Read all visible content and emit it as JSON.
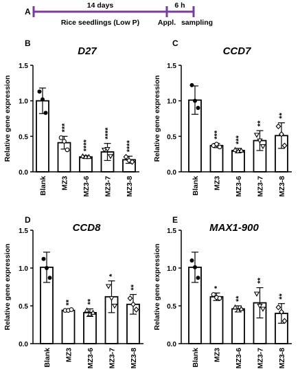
{
  "figure": {
    "panel_a": {
      "letter": "A",
      "duration_label": "14 days",
      "seedling_label": "Rice seedlings (Low P)",
      "appl_duration_label": "6 h",
      "appl_label": "Appl.",
      "sampling_label": "sampling",
      "timeline_color": "#7a3b9c"
    }
  },
  "chart_data": [
    {
      "panel": "B",
      "type": "bar",
      "title": "D27",
      "title_style": "italic",
      "ylabel": "Relative gene expression",
      "ylim": [
        0,
        1.5
      ],
      "yticks": [
        "0.0",
        "0.5",
        "1.0",
        "1.5"
      ],
      "categories": [
        "Blank",
        "MZ3",
        "MZ3-6",
        "MZ3-7",
        "MZ3-8"
      ],
      "values": [
        1.0,
        0.41,
        0.21,
        0.28,
        0.17
      ],
      "errors": [
        0.18,
        0.09,
        0.02,
        0.12,
        0.05
      ],
      "significance": [
        "",
        "***",
        "****",
        "****",
        "****"
      ],
      "points": [
        [
          1.13,
          1.02,
          0.83
        ],
        [
          0.48,
          0.43,
          0.31
        ],
        [
          0.22,
          0.21,
          0.21
        ],
        [
          0.31,
          0.32,
          0.22
        ],
        [
          0.21,
          0.16,
          0.14
        ]
      ]
    },
    {
      "panel": "C",
      "type": "bar",
      "title": "CCD7",
      "title_style": "italic",
      "ylabel": "Relative gene expression",
      "ylim": [
        0,
        1.5
      ],
      "yticks": [
        "0.0",
        "0.5",
        "1.0",
        "1.5"
      ],
      "categories": [
        "Blank",
        "MZ3",
        "MZ3-6",
        "MZ3-7",
        "MZ3-8"
      ],
      "values": [
        1.01,
        0.37,
        0.3,
        0.44,
        0.51
      ],
      "errors": [
        0.2,
        0.03,
        0.03,
        0.14,
        0.18
      ],
      "significance": [
        "",
        "***",
        "***",
        "**",
        "**"
      ],
      "points": [
        [
          1.22,
          1.0,
          0.9
        ],
        [
          0.37,
          0.39,
          0.35
        ],
        [
          0.31,
          0.29,
          0.3
        ],
        [
          0.52,
          0.44,
          0.36
        ],
        [
          0.64,
          0.53,
          0.37
        ]
      ]
    },
    {
      "panel": "D",
      "type": "bar",
      "title": "CCD8",
      "title_style": "italic",
      "ylabel": "Relative gene expression",
      "ylim": [
        0,
        1.5
      ],
      "yticks": [
        "0.0",
        "0.5",
        "1.0",
        "1.5"
      ],
      "categories": [
        "Blank",
        "MZ3",
        "MZ3-6",
        "MZ3-7",
        "MZ3-8"
      ],
      "values": [
        1.01,
        0.44,
        0.41,
        0.62,
        0.52
      ],
      "errors": [
        0.2,
        0.01,
        0.05,
        0.21,
        0.13
      ],
      "significance": [
        "",
        "**",
        "**",
        "*",
        "**"
      ],
      "points": [
        [
          1.12,
          1.0,
          0.87
        ],
        [
          0.44,
          0.44,
          0.45
        ],
        [
          0.44,
          0.39,
          0.41
        ],
        [
          0.76,
          0.6,
          0.5
        ],
        [
          0.6,
          0.52,
          0.45
        ]
      ]
    },
    {
      "panel": "E",
      "type": "bar",
      "title": "MAX1-900",
      "title_style": "italic",
      "ylabel": "Relative gene expression",
      "ylim": [
        0,
        1.5
      ],
      "yticks": [
        "0.0",
        "0.5",
        "1.0",
        "1.5"
      ],
      "categories": [
        "Blank",
        "MZ3",
        "MZ3-6",
        "MZ3-7",
        "MZ3-8"
      ],
      "values": [
        1.01,
        0.62,
        0.46,
        0.54,
        0.4
      ],
      "errors": [
        0.2,
        0.05,
        0.04,
        0.2,
        0.13
      ],
      "significance": [
        "",
        "*",
        "**",
        "**",
        "**"
      ],
      "points": [
        [
          1.1,
          1.01,
          0.87
        ],
        [
          0.65,
          0.61,
          0.6
        ],
        [
          0.48,
          0.44,
          0.46
        ],
        [
          0.66,
          0.5,
          0.46
        ],
        [
          0.48,
          0.42,
          0.3
        ]
      ]
    }
  ]
}
